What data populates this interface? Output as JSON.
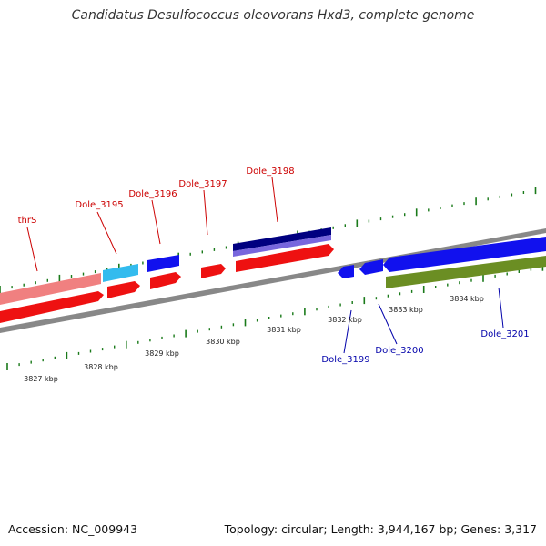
{
  "title": "Candidatus Desulfococcus oleovorans Hxd3, complete genome",
  "footer": {
    "accession": "Accession: NC_009943",
    "summary": "Topology: circular; Length: 3,944,167 bp; Genes: 3,317"
  },
  "colors": {
    "forward_label": "#cc0000",
    "reverse_label": "#0000aa",
    "backbone": "#888888",
    "tick": "#1a7a1a",
    "cds_forward": "#ee1111",
    "cds_reverse": "#1111ee",
    "gene_light_red": "#f08080",
    "gene_cyan": "#33bbee",
    "gene_dark_blue": "#000080",
    "gene_purple": "#7766dd",
    "gene_olive": "#6b8e23"
  },
  "scale_labels": [
    "3827 kbp",
    "3828 kbp",
    "3829 kbp",
    "3830 kbp",
    "3831 kbp",
    "3832 kbp",
    "3833 kbp",
    "3834 kbp"
  ],
  "gene_labels": [
    {
      "text": "thrS",
      "strand": "forward"
    },
    {
      "text": "Dole_3195",
      "strand": "forward"
    },
    {
      "text": "Dole_3196",
      "strand": "forward"
    },
    {
      "text": "Dole_3197",
      "strand": "forward"
    },
    {
      "text": "Dole_3198",
      "strand": "forward"
    },
    {
      "text": "Dole_3199",
      "strand": "reverse"
    },
    {
      "text": "Dole_3200",
      "strand": "reverse"
    },
    {
      "text": "Dole_3201",
      "strand": "reverse"
    }
  ]
}
